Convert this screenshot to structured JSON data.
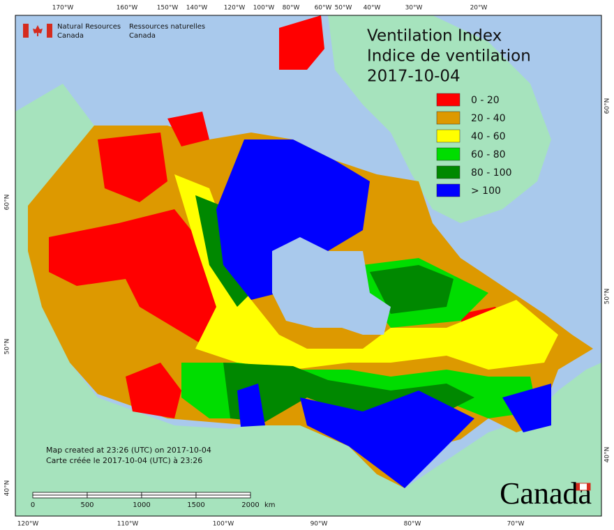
{
  "header": {
    "department_en": [
      "Natural Resources",
      "Canada"
    ],
    "department_fr": [
      "Ressources naturelles",
      "Canada"
    ]
  },
  "title": [
    "Ventilation Index",
    "Indice de ventilation",
    "2017-10-04"
  ],
  "legend": [
    {
      "label": "0 - 20",
      "color": "#ff0000"
    },
    {
      "label": "20 - 40",
      "color": "#dd9900"
    },
    {
      "label": "40 - 60",
      "color": "#ffff00"
    },
    {
      "label": "60 - 80",
      "color": "#00dd00"
    },
    {
      "label": "80 - 100",
      "color": "#008800"
    },
    {
      "label": "> 100",
      "color": "#0000ff"
    }
  ],
  "graticule": {
    "top": [
      "170°W",
      "160°W",
      "150°W",
      "140°W",
      "120°W",
      "100°W",
      "80°W",
      "60°W",
      "50°W",
      "40°W",
      "30°W",
      "20°W"
    ],
    "bottom": [
      "120°W",
      "110°W",
      "100°W",
      "90°W",
      "80°W",
      "70°W"
    ],
    "left": [
      "60°N",
      "50°N",
      "40°N"
    ],
    "right": [
      "60°N",
      "50°N",
      "40°N"
    ]
  },
  "notes": [
    "Map created at 23:26 (UTC) on 2017-10-04",
    "Carte créée le 2017-10-04 (UTC) à 23:26"
  ],
  "scale_bar": {
    "labels": [
      "0",
      "500",
      "1000",
      "1500",
      "2000"
    ],
    "unit": "km"
  },
  "wordmark": "Canada"
}
